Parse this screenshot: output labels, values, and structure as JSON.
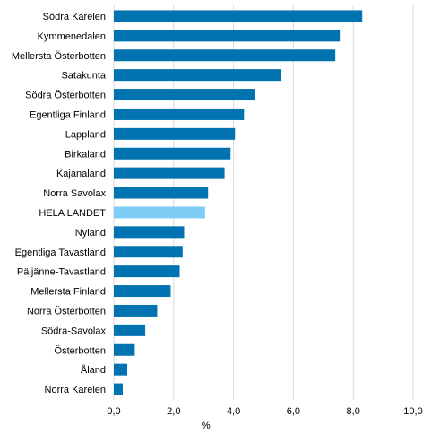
{
  "chart_data": {
    "type": "bar",
    "orientation": "horizontal",
    "categories": [
      "Södra Karelen",
      "Kymmenedalen",
      "Mellersta Österbotten",
      "Satakunta",
      "Södra Österbotten",
      "Egentliga Finland",
      "Lappland",
      "Birkaland",
      "Kajanaland",
      "Norra Savolax",
      "HELA LANDET",
      "Nyland",
      "Egentliga Tavastland",
      "Päijänne-Tavastland",
      "Mellersta Finland",
      "Norra Österbotten",
      "Södra-Savolax",
      "Österbotten",
      "Åland",
      "Norra Karelen"
    ],
    "values": [
      8.3,
      7.55,
      7.4,
      5.6,
      4.7,
      4.35,
      4.05,
      3.9,
      3.7,
      3.15,
      3.05,
      2.35,
      2.3,
      2.2,
      1.9,
      1.45,
      1.05,
      0.7,
      0.45,
      0.3
    ],
    "highlight_category": "HELA LANDET",
    "xlabel": "%",
    "ylabel": "",
    "title": "",
    "xlim": [
      0,
      10
    ],
    "xticks": [
      "0,0",
      "2,0",
      "4,0",
      "6,0",
      "8,0",
      "10,0"
    ],
    "grid": true,
    "legend": "none",
    "colors": {
      "bar": "#0073b0",
      "highlight": "#7fcdf5",
      "grid": "#d9d9d9"
    }
  }
}
